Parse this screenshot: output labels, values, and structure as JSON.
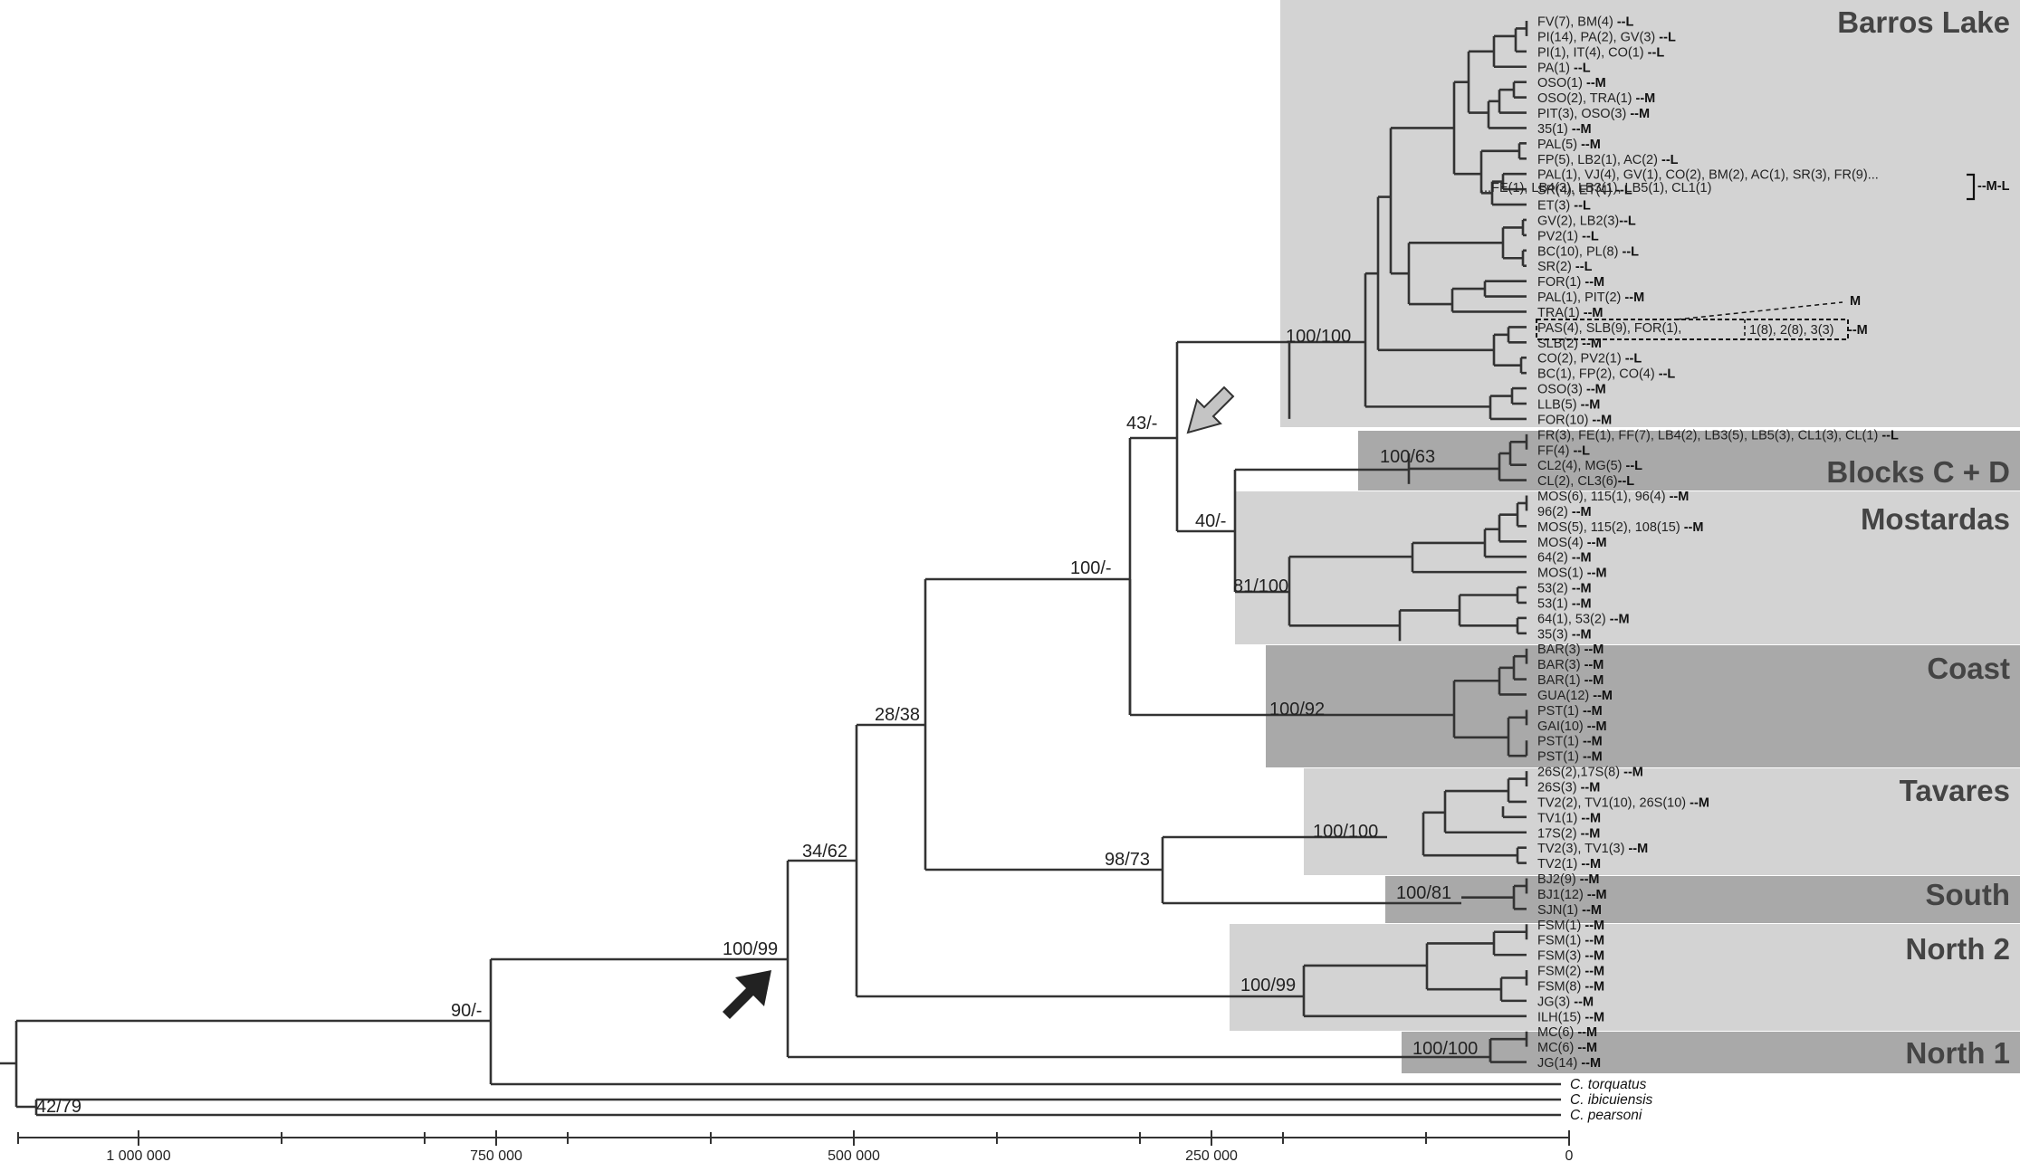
{
  "clades": [
    {
      "key": "barros",
      "label": "Barros Lake",
      "shade": "#d3d3d3"
    },
    {
      "key": "blocks",
      "label": "Blocks C + D",
      "shade": "#a9a9a9"
    },
    {
      "key": "mostardas",
      "label": "Mostardas",
      "shade": "#d3d3d3"
    },
    {
      "key": "coast",
      "label": "Coast",
      "shade": "#a9a9a9"
    },
    {
      "key": "tavares",
      "label": "Tavares",
      "shade": "#d3d3d3"
    },
    {
      "key": "south",
      "label": "South",
      "shade": "#a9a9a9"
    },
    {
      "key": "north2",
      "label": "North 2",
      "shade": "#d3d3d3"
    },
    {
      "key": "north1",
      "label": "North 1",
      "shade": "#a9a9a9"
    }
  ],
  "leaves": [
    {
      "t": "FV(7), BM(4) ",
      "s": "--L"
    },
    {
      "t": "PI(14), PA(2), GV(3) ",
      "s": "--L"
    },
    {
      "t": "PI(1), IT(4), CO(1) ",
      "s": "--L"
    },
    {
      "t": "PA(1) ",
      "s": "--L"
    },
    {
      "t": "OSO(1) ",
      "s": "--M"
    },
    {
      "t": "OSO(2), TRA(1) ",
      "s": "--M"
    },
    {
      "t": "PIT(3), OSO(3) ",
      "s": "--M"
    },
    {
      "t": "35(1) ",
      "s": "--M"
    },
    {
      "t": "PAL(5) ",
      "s": "--M"
    },
    {
      "t": "FP(5), LB2(1), AC(2) ",
      "s": "--L"
    },
    {
      "t": "PAL(1), VJ(4), GV(1), CO(2), BM(2), AC(1), SR(3), FR(9)...",
      "s": ""
    },
    {
      "t": "SR(4), ET(4) ",
      "s": "--L"
    },
    {
      "t": "ET(3) ",
      "s": "--L"
    },
    {
      "t": "GV(2), LB2(3)",
      "s": "--L"
    },
    {
      "t": "PV2(1) ",
      "s": "--L"
    },
    {
      "t": "BC(10), PL(8) ",
      "s": "--L"
    },
    {
      "t": "SR(2) ",
      "s": "--L"
    },
    {
      "t": "FOR(1) ",
      "s": "--M"
    },
    {
      "t": "PAL(1), PIT(2) ",
      "s": "--M"
    },
    {
      "t": "TRA(1) ",
      "s": "--M"
    },
    {
      "t": "PAS(4), SLB(9), FOR(1), ",
      "s": ""
    },
    {
      "t": "SLB(2) ",
      "s": "--M"
    },
    {
      "t": "CO(2), PV2(1) ",
      "s": "--L"
    },
    {
      "t": "BC(1), FP(2), CO(4) ",
      "s": "--L"
    },
    {
      "t": "OSO(3) ",
      "s": "--M"
    },
    {
      "t": "LLB(5) ",
      "s": "--M"
    },
    {
      "t": "FOR(10) ",
      "s": "--M"
    },
    {
      "t": "FR(3), FE(1), FF(7), LB4(2), LB3(5), LB5(3), CL1(3), CL(1) ",
      "s": "--L"
    },
    {
      "t": "FF(4) ",
      "s": "--L"
    },
    {
      "t": "CL2(4), MG(5) ",
      "s": "--L"
    },
    {
      "t": "CL(2), CL3(6)",
      "s": "--L"
    },
    {
      "t": "MOS(6), 115(1), 96(4) ",
      "s": "--M"
    },
    {
      "t": "96(2) ",
      "s": "--M"
    },
    {
      "t": "MOS(5), 115(2), 108(15) ",
      "s": "--M"
    },
    {
      "t": "MOS(4) ",
      "s": "--M"
    },
    {
      "t": "64(2) ",
      "s": "--M"
    },
    {
      "t": "MOS(1) ",
      "s": "--M"
    },
    {
      "t": "53(2) ",
      "s": "--M"
    },
    {
      "t": "53(1) ",
      "s": "--M"
    },
    {
      "t": "64(1), 53(2) ",
      "s": "--M"
    },
    {
      "t": "35(3) ",
      "s": "--M"
    },
    {
      "t": "BAR(3) ",
      "s": "--M"
    },
    {
      "t": "BAR(3) ",
      "s": "--M"
    },
    {
      "t": "BAR(1) ",
      "s": "--M"
    },
    {
      "t": "GUA(12) ",
      "s": "--M"
    },
    {
      "t": "PST(1) ",
      "s": "--M"
    },
    {
      "t": "GAI(10) ",
      "s": "--M"
    },
    {
      "t": "PST(1) ",
      "s": "--M"
    },
    {
      "t": "PST(1) ",
      "s": "--M"
    },
    {
      "t": "26S(2),17S(8) ",
      "s": "--M"
    },
    {
      "t": "26S(3) ",
      "s": "--M"
    },
    {
      "t": "TV2(2), TV1(10), 26S(10) ",
      "s": "--M"
    },
    {
      "t": "TV1(1) ",
      "s": "--M"
    },
    {
      "t": "17S(2) ",
      "s": "--M"
    },
    {
      "t": "TV2(3), TV1(3) ",
      "s": "--M"
    },
    {
      "t": "TV2(1) ",
      "s": "--M"
    },
    {
      "t": "BJ2(9) ",
      "s": "--M"
    },
    {
      "t": "BJ1(12) ",
      "s": "--M"
    },
    {
      "t": "SJN(1) ",
      "s": "--M"
    },
    {
      "t": "FSM(1) ",
      "s": "--M"
    },
    {
      "t": "FSM(1) ",
      "s": "--M"
    },
    {
      "t": "FSM(3) ",
      "s": "--M"
    },
    {
      "t": "FSM(2) ",
      "s": "--M"
    },
    {
      "t": "FSM(8) ",
      "s": "--M"
    },
    {
      "t": "JG(3) ",
      "s": "--M"
    },
    {
      "t": "ILH(15) ",
      "s": "--M"
    },
    {
      "t": "MC(6) ",
      "s": "--M"
    },
    {
      "t": "MC(6) ",
      "s": "--M"
    },
    {
      "t": "JG(14) ",
      "s": "--M"
    }
  ],
  "outgroups": [
    "C. torquatus",
    "C. ibicuiensis",
    "C. pearsoni"
  ],
  "annotations": {
    "pal_continuation": "...FE(1), LB4(3), LB3(1), LB5(1), CL1(1)",
    "pal_group_suffix": "--M-L",
    "pas_continuation": "1(8), 2(8), 3(3)",
    "pas_suffix": "--M",
    "tra_label": "M"
  },
  "supports": {
    "barros": "100/100",
    "blocks": "100/63",
    "mostardas": "81/100",
    "coast": "100/92",
    "tavares": "100/100",
    "south": "100/81",
    "north2": "100/99",
    "north1": "100/100",
    "n43": "43/-",
    "n40": "40/-",
    "n100": "100/-",
    "n28": "28/38",
    "n98": "98/73",
    "n34": "34/62",
    "n100b": "100/99",
    "n90": "90/-",
    "n42": "42/79"
  },
  "axis": {
    "ticks": [
      "1 000 000",
      "750 000",
      "500 000",
      "250 000",
      "0"
    ]
  }
}
